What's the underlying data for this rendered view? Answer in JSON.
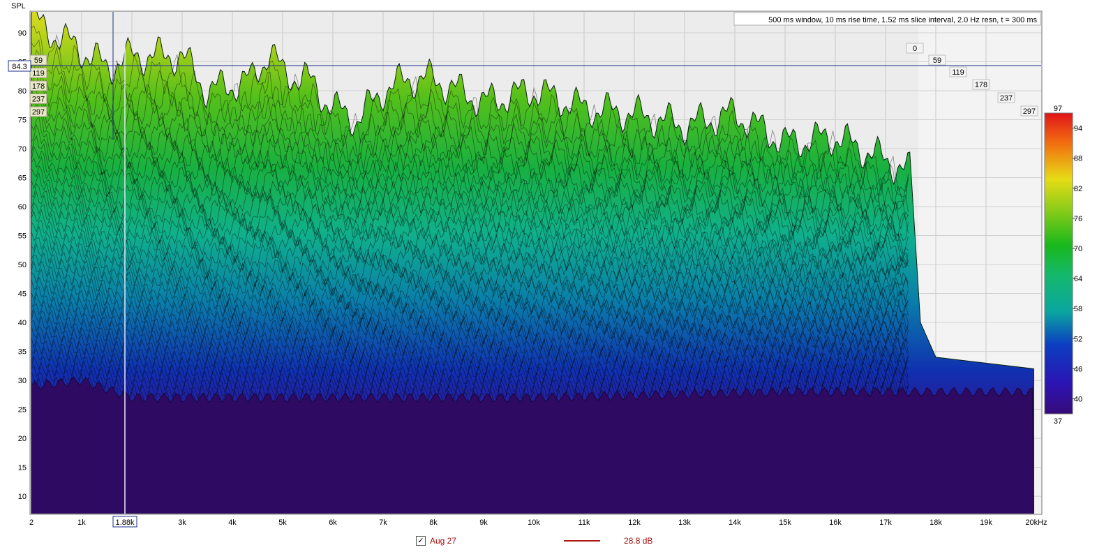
{
  "chart_data": {
    "type": "area",
    "title": "",
    "xlabel": "",
    "ylabel": "SPL",
    "info_text": "500 ms window, 10 ms rise time, 1.52 ms slice interval, 2.0 Hz resn, t = 300 ms",
    "x_range_hz": [
      2,
      20000
    ],
    "y_range_db": [
      7,
      94
    ],
    "x_ticks": [
      "2",
      "1k",
      "2k",
      "3k",
      "4k",
      "5k",
      "6k",
      "7k",
      "8k",
      "9k",
      "10k",
      "11k",
      "12k",
      "13k",
      "14k",
      "15k",
      "16k",
      "17k",
      "18k",
      "19k",
      "20kHz"
    ],
    "x_cursor_label": "1.88k",
    "x_cursor_hz": 1880,
    "y_ticks": [
      "90",
      "85",
      "80",
      "75",
      "70",
      "65",
      "60",
      "55",
      "50",
      "45",
      "40",
      "35",
      "30",
      "25",
      "20",
      "15",
      "10"
    ],
    "y_cursor_label": "84.3",
    "y_cursor_db": 84.3,
    "time_slices_ms": [
      "0",
      "59",
      "119",
      "178",
      "237",
      "297"
    ],
    "left_slice_labels": [
      "59",
      "119",
      "178",
      "237",
      "297"
    ],
    "colorbar": {
      "min_label": "37",
      "max_label": "97",
      "ticks": [
        "94",
        "88",
        "82",
        "76",
        "70",
        "64",
        "58",
        "52",
        "46",
        "40"
      ]
    },
    "front_slice_envelope": {
      "series_name": "t = 0 ms",
      "x_hz": [
        2,
        200,
        600,
        1000,
        1500,
        2000,
        2500,
        3000,
        3500,
        4000,
        4400,
        4750,
        5000,
        5500,
        6000,
        6500,
        7000,
        7500,
        8000,
        9000,
        10000,
        11000,
        12000,
        13000,
        14000,
        15000,
        16000,
        16500,
        17000,
        17500
      ],
      "y_db": [
        93,
        91,
        89,
        87,
        84,
        86,
        86,
        86,
        80,
        81,
        82,
        87,
        83,
        82,
        77,
        75,
        80,
        82,
        82,
        78,
        80,
        77,
        76,
        74,
        76,
        71,
        72,
        70,
        68,
        66
      ]
    },
    "noise_floor": {
      "series_name": "t = 297 ms",
      "x_hz": [
        2,
        1000,
        2000,
        4000,
        6000,
        10000,
        15000,
        20000
      ],
      "y_db": [
        29,
        30,
        27,
        27,
        27,
        27,
        28,
        28
      ]
    },
    "colors": {
      "background": "#ffffff",
      "plot_bg": "#ececec",
      "grid": "#c8c8c8",
      "cursor": "#1a2f8a",
      "trace": "#a01010"
    }
  },
  "legend": {
    "checkbox_checked": true,
    "checkbox_mark": "✓",
    "name": "Aug 27",
    "value": "28.8 dB"
  }
}
